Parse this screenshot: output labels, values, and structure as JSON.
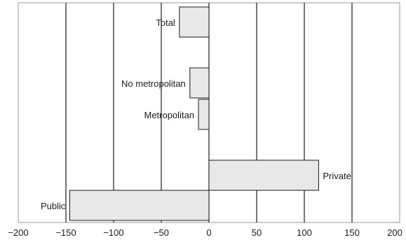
{
  "colors": {
    "bar_fill": "#e8e8e8",
    "bar_stroke": "#1a1a1a",
    "grid": "#1a1a1a",
    "frame": "#9a9a9a",
    "text": "#1a1a1a"
  },
  "chart_data": {
    "type": "bar",
    "orientation": "horizontal",
    "title": "",
    "xlabel": "",
    "ylabel": "",
    "xlim": [
      -200,
      200
    ],
    "xticks": [
      -200,
      -150,
      -100,
      -50,
      0,
      50,
      100,
      150,
      200
    ],
    "xtick_labels": [
      "−200",
      "−150",
      "−100",
      "−50",
      "0",
      "50",
      "100",
      "150",
      "200"
    ],
    "grid": true,
    "legend": "none",
    "categories": [
      "Total",
      "No metropolitan",
      "Metropolitan",
      "Private",
      "Public"
    ],
    "values": [
      -31,
      -20,
      -11,
      115,
      -146
    ]
  }
}
